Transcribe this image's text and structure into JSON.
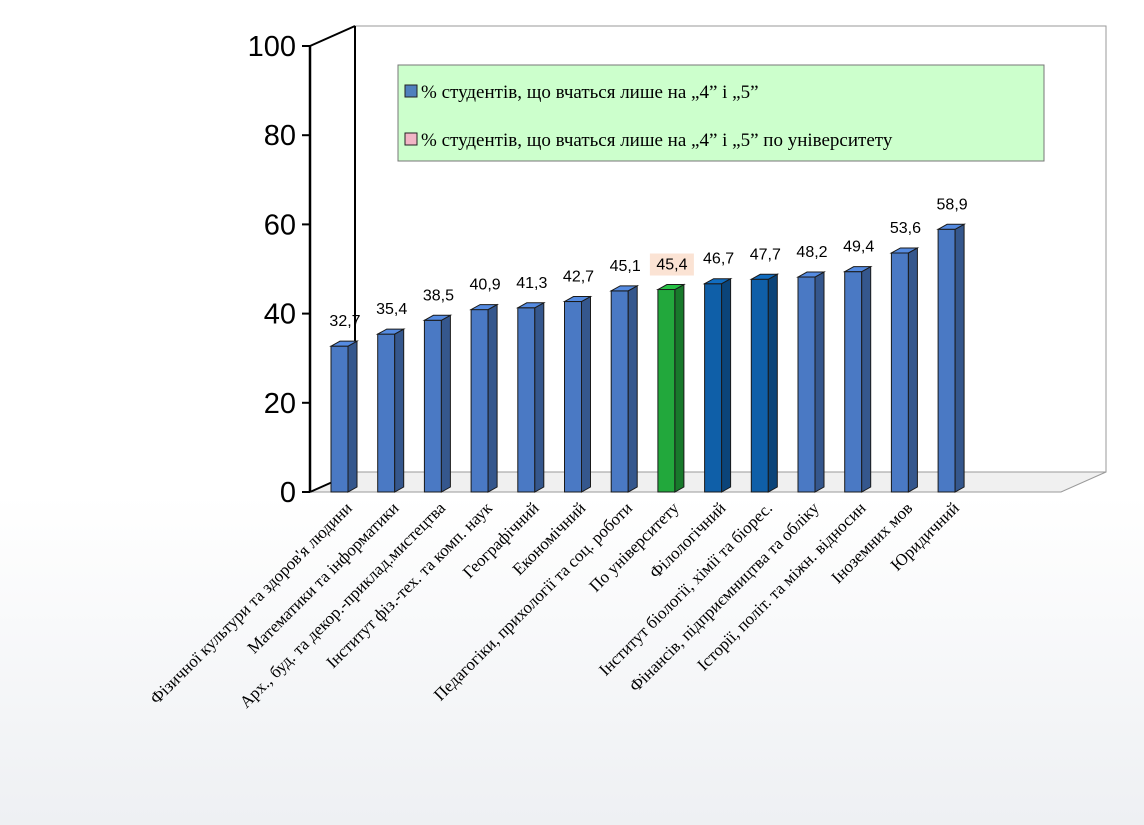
{
  "chart_data": {
    "type": "bar",
    "title": "",
    "xlabel": "",
    "ylabel": "",
    "ylim": [
      0,
      100
    ],
    "yticks": [
      0,
      20,
      40,
      60,
      80,
      100
    ],
    "grid": false,
    "legend_position": "top-right",
    "categories": [
      "Фізичної культури та здоров'я людини",
      "Математики та інформатики",
      "Арх., буд. та декор.-приклад.мистецтва",
      "Інститут фіз.-тех. та комп. наук",
      "Географічний",
      "Економічний",
      "Педагогіки, прихології та соц. роботи",
      "По університету",
      "Філологічний",
      "Інститут біології, хімії та біорес.",
      "Фінансів, підприємництва та обліку",
      "Історії, політ. та міжн. відносин",
      "Іноземних мов",
      "Юридичний"
    ],
    "values": [
      32.7,
      35.4,
      38.5,
      40.9,
      41.3,
      42.7,
      45.1,
      45.4,
      46.7,
      47.7,
      48.2,
      49.4,
      53.6,
      58.9
    ],
    "value_labels": [
      "32,7",
      "35,4",
      "38,5",
      "40,9",
      "41,3",
      "42,7",
      "45,1",
      "45,4",
      "46,7",
      "47,7",
      "48,2",
      "49,4",
      "53,6",
      "58,9"
    ],
    "series": [
      {
        "name": "% студентів, що вчаться лише на „4” і „5”",
        "color": "#4f81bd"
      },
      {
        "name": "% студентів, що вчаться лише на „4” і „5” по університету",
        "color": "#f2b6c6"
      }
    ],
    "bar_colors": [
      "#4a79c4",
      "#4a79c4",
      "#4a79c4",
      "#4a79c4",
      "#4a79c4",
      "#4a79c4",
      "#4a79c4",
      "#22a83c",
      "#0f5fa8",
      "#0f5fa8",
      "#4a79c4",
      "#4a79c4",
      "#4a79c4",
      "#4a79c4"
    ],
    "highlight_label_bg": "#fbe3d4",
    "legend_bg": "#ccffcc"
  }
}
